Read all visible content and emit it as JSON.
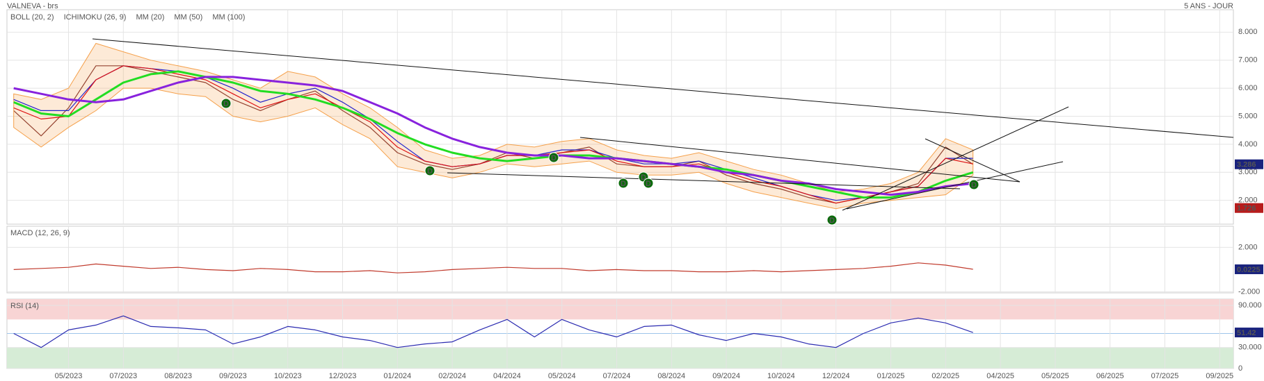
{
  "chart_data": [
    {
      "type": "line",
      "title": "VALNEVA - brs",
      "subtitle": "5 ANS - JOUR",
      "categories": [
        null,
        null,
        "05/2023",
        null,
        "07/2023",
        null,
        "08/2023",
        null,
        "09/2023",
        null,
        "10/2023",
        null,
        "12/2023",
        null,
        "01/2024",
        null,
        "02/2024",
        null,
        "04/2024",
        null,
        "05/2024",
        null,
        "07/2024",
        null,
        "08/2024",
        null,
        "09/2024",
        null,
        "10/2024",
        null,
        "12/2024",
        null,
        "01/2025",
        null,
        "02/2025",
        null,
        "04/2025",
        null,
        "05/2025",
        null,
        "06/2025",
        null,
        "07/2025",
        null,
        "09/2025"
      ],
      "series": [
        {
          "color": "#7a2a2a",
          "values": [
            5.2,
            4.3,
            5.3,
            6.8,
            6.8,
            6.6,
            6.4,
            6.2,
            5.6,
            5.2,
            5.6,
            5.9,
            5.2,
            4.6,
            3.7,
            3.3,
            3.1,
            3.3,
            3.7,
            3.5,
            3.7,
            3.9,
            3.3,
            3.2,
            3.2,
            3.4,
            2.9,
            2.6,
            2.4,
            2.1,
            1.9,
            2.1,
            2.3,
            2.6,
            3.9,
            3.286,
            null,
            null,
            null,
            null,
            null,
            null,
            null,
            null,
            null
          ]
        },
        {
          "name": "BOLL (20, 2)",
          "kind": "band",
          "color": "#f5a04a",
          "upper": [
            5.8,
            5.6,
            6.0,
            7.6,
            7.3,
            7.0,
            6.8,
            6.6,
            6.3,
            6.0,
            6.6,
            6.4,
            5.8,
            5.3,
            4.6,
            3.8,
            3.5,
            3.6,
            4.0,
            3.9,
            4.1,
            4.2,
            3.8,
            3.6,
            3.5,
            3.7,
            3.4,
            3.1,
            2.9,
            2.6,
            2.3,
            2.4,
            2.6,
            3.0,
            4.2,
            3.8,
            null,
            null,
            null,
            null,
            null,
            null,
            null,
            null,
            null
          ],
          "lower": [
            4.6,
            3.9,
            4.6,
            5.2,
            6.0,
            6.0,
            5.8,
            5.7,
            5.0,
            4.8,
            5.0,
            5.3,
            4.7,
            4.2,
            3.2,
            3.0,
            2.8,
            3.0,
            3.3,
            3.2,
            3.3,
            3.4,
            3.0,
            2.9,
            2.9,
            3.0,
            2.6,
            2.3,
            2.1,
            1.9,
            1.7,
            1.9,
            2.0,
            2.1,
            2.2,
            2.9,
            null,
            null,
            null,
            null,
            null,
            null,
            null,
            null,
            null
          ]
        },
        {
          "name": "ICHIMOKU (26, 9)",
          "color": "#2222cc",
          "values": [
            5.6,
            5.2,
            5.2,
            6.3,
            6.8,
            6.7,
            6.6,
            6.4,
            6.0,
            5.5,
            5.8,
            6.0,
            5.5,
            4.9,
            4.1,
            3.4,
            3.2,
            3.3,
            3.6,
            3.6,
            3.8,
            3.8,
            3.5,
            3.3,
            3.3,
            3.4,
            3.1,
            2.8,
            2.5,
            2.2,
            2.0,
            2.1,
            2.3,
            2.5,
            3.5,
            3.5,
            null,
            null,
            null,
            null,
            null,
            null,
            null,
            null,
            null
          ]
        },
        {
          "name": "MM (20)",
          "color": "#dd1111",
          "values": [
            5.3,
            4.9,
            5.0,
            6.3,
            6.8,
            6.7,
            6.5,
            6.3,
            5.8,
            5.3,
            5.6,
            5.8,
            5.3,
            4.8,
            3.9,
            3.4,
            3.2,
            3.3,
            3.6,
            3.6,
            3.7,
            3.8,
            3.4,
            3.2,
            3.2,
            3.3,
            3.0,
            2.7,
            2.5,
            2.2,
            1.9,
            2.1,
            2.3,
            2.5,
            3.5,
            3.3,
            null,
            null,
            null,
            null,
            null,
            null,
            null,
            null,
            null
          ]
        },
        {
          "name": "MM (50)",
          "color": "#22dd22",
          "width": 3,
          "values": [
            5.5,
            5.1,
            5.0,
            5.6,
            6.2,
            6.5,
            6.6,
            6.4,
            6.2,
            5.9,
            5.8,
            5.6,
            5.3,
            4.9,
            4.4,
            4.0,
            3.7,
            3.5,
            3.4,
            3.5,
            3.6,
            3.6,
            3.5,
            3.4,
            3.3,
            3.2,
            3.1,
            2.9,
            2.7,
            2.5,
            2.3,
            2.1,
            2.1,
            2.3,
            2.7,
            3.0,
            null,
            null,
            null,
            null,
            null,
            null,
            null,
            null,
            null
          ]
        },
        {
          "name": "MM (100)",
          "color": "#8822dd",
          "width": 3,
          "values": [
            6.0,
            5.8,
            5.6,
            5.5,
            5.6,
            5.9,
            6.2,
            6.4,
            6.4,
            6.3,
            6.2,
            6.1,
            5.9,
            5.5,
            5.1,
            4.6,
            4.2,
            3.9,
            3.7,
            3.6,
            3.6,
            3.5,
            3.5,
            3.4,
            3.3,
            3.2,
            3.0,
            2.9,
            2.7,
            2.6,
            2.4,
            2.3,
            2.2,
            2.3,
            2.5,
            2.6,
            null,
            null,
            null,
            null,
            null,
            null,
            null,
            null,
            null
          ]
        }
      ],
      "ylim": [
        1.15,
        8.8
      ],
      "yticks": [
        {
          "value": 2,
          "label": "2.000"
        },
        {
          "value": 3,
          "label": "3.000"
        },
        {
          "value": 4,
          "label": "4.000"
        },
        {
          "value": 5,
          "label": "5.000"
        },
        {
          "value": 6,
          "label": "6.000"
        },
        {
          "value": 7,
          "label": "7.000"
        },
        {
          "value": 8,
          "label": "8.000"
        }
      ],
      "grid": true,
      "min_value": 1.726,
      "event_labels": [
        "D",
        "D",
        "D",
        "D",
        "D",
        "D",
        "D",
        "D"
      ]
    },
    {
      "type": "line",
      "title": "MACD (12, 26, 9)",
      "series": [
        {
          "color": "#c0392b",
          "values": [
            0,
            0.1,
            0.2,
            0.5,
            0.3,
            0.1,
            0.2,
            0,
            -0.1,
            0.1,
            0,
            -0.2,
            -0.2,
            -0.1,
            -0.3,
            -0.2,
            0,
            0.1,
            0.2,
            0.1,
            0.1,
            -0.1,
            0,
            -0.1,
            -0.1,
            -0.2,
            -0.2,
            -0.1,
            -0.2,
            -0.1,
            0,
            0.1,
            0.3,
            0.6,
            0.4,
            0.0225,
            null,
            null,
            null,
            null,
            null,
            null,
            null,
            null,
            null
          ]
        }
      ],
      "ylim": [
        -2.1,
        3.9
      ],
      "yticks": [
        {
          "value": -2,
          "label": "-2.000"
        },
        {
          "value": 2,
          "label": "2.000"
        }
      ],
      "grid": true
    },
    {
      "type": "line",
      "title": "RSI (14)",
      "series": [
        {
          "color": "#2a2ab0",
          "values": [
            50,
            30,
            55,
            62,
            75,
            60,
            58,
            55,
            35,
            45,
            60,
            55,
            45,
            40,
            30,
            35,
            38,
            55,
            70,
            45,
            70,
            55,
            45,
            60,
            62,
            48,
            40,
            50,
            45,
            35,
            30,
            50,
            65,
            72,
            65,
            51.42,
            null,
            null,
            null,
            null,
            null,
            null,
            null,
            null,
            null
          ]
        }
      ],
      "ylim": [
        0,
        99
      ],
      "yticks": [
        0,
        {
          "value": 30,
          "label": "30.000"
        },
        {
          "value": 90,
          "label": "90.000"
        }
      ],
      "grid": true,
      "bands": [
        {
          "from": 70,
          "to": 99,
          "color": "#f8d4d4"
        },
        {
          "from": 0,
          "to": 30,
          "color": "#d6ecd6"
        }
      ],
      "midline": 50
    }
  ]
}
